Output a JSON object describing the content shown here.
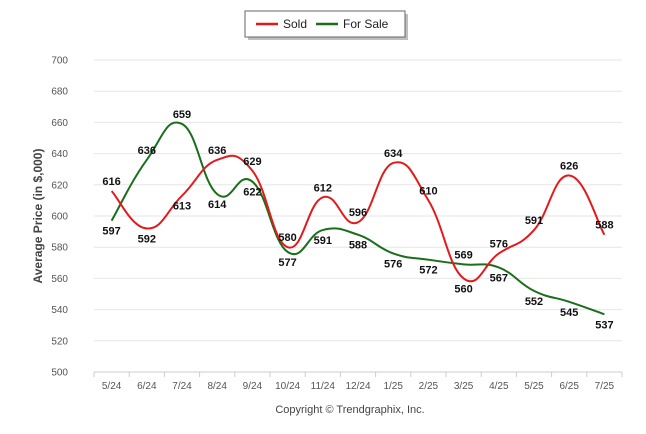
{
  "chart_data": {
    "type": "line",
    "ylabel": "Average Price (in $,000)",
    "xlabel": "",
    "ylim": [
      500,
      700
    ],
    "yticks": [
      500,
      520,
      540,
      560,
      580,
      600,
      620,
      640,
      660,
      680,
      700
    ],
    "categories": [
      "5/24",
      "6/24",
      "7/24",
      "8/24",
      "9/24",
      "10/24",
      "11/24",
      "12/24",
      "1/25",
      "2/25",
      "3/25",
      "4/25",
      "5/25",
      "6/25",
      "7/25"
    ],
    "series": [
      {
        "name": "Sold",
        "color": "#e31a1c",
        "values": [
          616,
          592,
          613,
          636,
          629,
          580,
          612,
          596,
          634,
          610,
          560,
          576,
          591,
          626,
          588
        ]
      },
      {
        "name": "For Sale",
        "color": "#1b6e1b",
        "values": [
          597,
          636,
          659,
          614,
          622,
          577,
          591,
          588,
          576,
          572,
          569,
          567,
          552,
          545,
          537
        ]
      }
    ],
    "legend_position": "top-center",
    "grid": true,
    "footer": "Copyright © Trendgraphix, Inc."
  }
}
